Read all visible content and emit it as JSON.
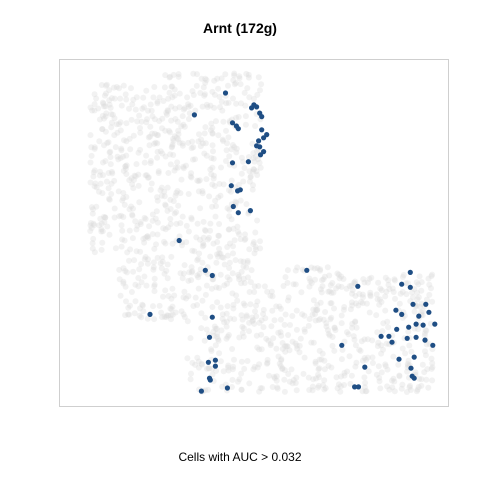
{
  "chart_data": {
    "type": "scatter",
    "title": "Arnt (172g)",
    "caption": "Cells with AUC > 0.032",
    "colors": {
      "background_points": "#d9d9d9",
      "highlight": "#1f4e84",
      "frame": "#cfcfcf"
    },
    "xlim": [
      0,
      100
    ],
    "ylim": [
      0,
      100
    ],
    "highlighted_points": [
      {
        "x": 42.8,
        "y": 90.2
      },
      {
        "x": 49.5,
        "y": 85.9
      },
      {
        "x": 50.1,
        "y": 86.8
      },
      {
        "x": 50.8,
        "y": 86.2
      },
      {
        "x": 51.6,
        "y": 84.4
      },
      {
        "x": 52.1,
        "y": 83.4
      },
      {
        "x": 53.4,
        "y": 78.2
      },
      {
        "x": 52.6,
        "y": 77.3
      },
      {
        "x": 52.1,
        "y": 79.6
      },
      {
        "x": 51.3,
        "y": 76.4
      },
      {
        "x": 51.6,
        "y": 74.7
      },
      {
        "x": 52.6,
        "y": 73.3
      },
      {
        "x": 51.8,
        "y": 72.4
      },
      {
        "x": 50.8,
        "y": 75.0
      },
      {
        "x": 44.6,
        "y": 81.6
      },
      {
        "x": 45.6,
        "y": 80.7
      },
      {
        "x": 46.1,
        "y": 79.9
      },
      {
        "x": 34.8,
        "y": 83.9
      },
      {
        "x": 44.6,
        "y": 70.1
      },
      {
        "x": 48.7,
        "y": 70.4
      },
      {
        "x": 44.3,
        "y": 63.5
      },
      {
        "x": 45.9,
        "y": 62.0
      },
      {
        "x": 46.6,
        "y": 62.3
      },
      {
        "x": 46.1,
        "y": 55.7
      },
      {
        "x": 49.2,
        "y": 56.3
      },
      {
        "x": 44.8,
        "y": 57.5
      },
      {
        "x": 30.9,
        "y": 47.7
      },
      {
        "x": 37.6,
        "y": 39.1
      },
      {
        "x": 39.4,
        "y": 37.6
      },
      {
        "x": 23.4,
        "y": 26.4
      },
      {
        "x": 39.4,
        "y": 25.6
      },
      {
        "x": 38.7,
        "y": 19.8
      },
      {
        "x": 40.2,
        "y": 13.2
      },
      {
        "x": 38.4,
        "y": 12.6
      },
      {
        "x": 40.2,
        "y": 11.5
      },
      {
        "x": 38.9,
        "y": 7.5
      },
      {
        "x": 36.6,
        "y": 4.3
      },
      {
        "x": 43.3,
        "y": 5.2
      },
      {
        "x": 38.7,
        "y": 8.0
      },
      {
        "x": 63.7,
        "y": 39.1
      },
      {
        "x": 76.8,
        "y": 34.5
      },
      {
        "x": 72.7,
        "y": 17.5
      },
      {
        "x": 78.6,
        "y": 11.2
      },
      {
        "x": 76.0,
        "y": 5.5
      },
      {
        "x": 77.0,
        "y": 5.5
      },
      {
        "x": 90.3,
        "y": 38.5
      },
      {
        "x": 88.1,
        "y": 35.1
      },
      {
        "x": 90.3,
        "y": 34.2
      },
      {
        "x": 91.0,
        "y": 29.3
      },
      {
        "x": 94.3,
        "y": 29.3
      },
      {
        "x": 86.6,
        "y": 27.6
      },
      {
        "x": 88.1,
        "y": 26.4
      },
      {
        "x": 92.5,
        "y": 25.9
      },
      {
        "x": 95.1,
        "y": 27.0
      },
      {
        "x": 89.9,
        "y": 22.7
      },
      {
        "x": 91.8,
        "y": 23.6
      },
      {
        "x": 93.6,
        "y": 23.3
      },
      {
        "x": 96.6,
        "y": 23.6
      },
      {
        "x": 86.8,
        "y": 22.1
      },
      {
        "x": 84.8,
        "y": 20.1
      },
      {
        "x": 82.8,
        "y": 20.1
      },
      {
        "x": 85.6,
        "y": 18.4
      },
      {
        "x": 89.5,
        "y": 19.5
      },
      {
        "x": 91.8,
        "y": 19.8
      },
      {
        "x": 94.1,
        "y": 19.0
      },
      {
        "x": 96.1,
        "y": 17.5
      },
      {
        "x": 91.3,
        "y": 14.1
      },
      {
        "x": 87.4,
        "y": 13.5
      },
      {
        "x": 90.5,
        "y": 10.9
      },
      {
        "x": 90.8,
        "y": 8.6
      },
      {
        "x": 91.3,
        "y": 8.0
      }
    ]
  }
}
